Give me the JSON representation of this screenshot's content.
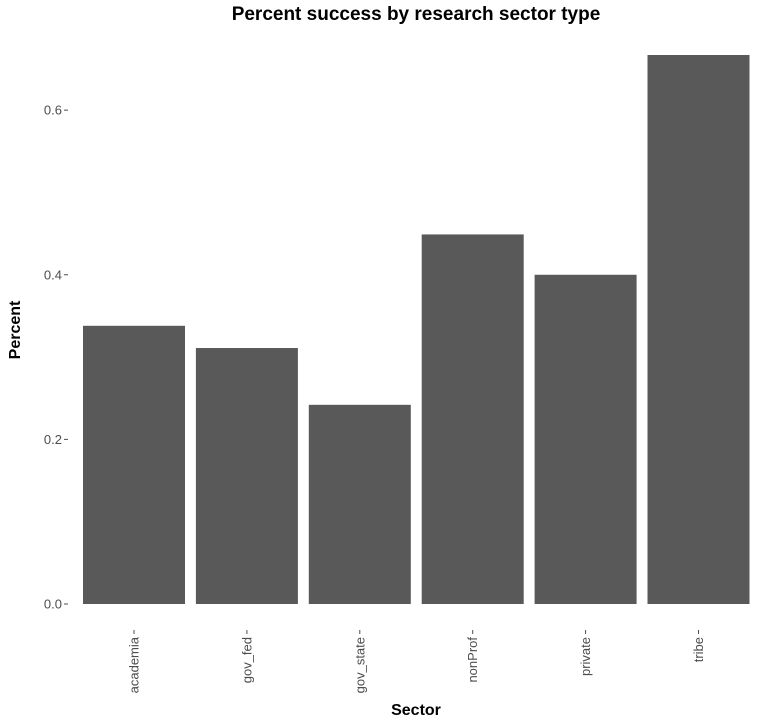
{
  "chart_data": {
    "type": "bar",
    "title": "Percent success by research sector type",
    "xlabel": "Sector",
    "ylabel": "Percent",
    "categories": [
      "academia",
      "gov_fed",
      "gov_state",
      "nonProf",
      "private",
      "tribe"
    ],
    "values": [
      0.338,
      0.311,
      0.242,
      0.449,
      0.4,
      0.667
    ],
    "ylim": [
      0,
      0.667
    ],
    "yticks": [
      0.0,
      0.2,
      0.4,
      0.6
    ],
    "ytick_labels": [
      "0.0",
      "0.2",
      "0.4",
      "0.6"
    ],
    "grid": false,
    "legend": "none",
    "bar_color": "#595959",
    "background": "#ffffff"
  }
}
